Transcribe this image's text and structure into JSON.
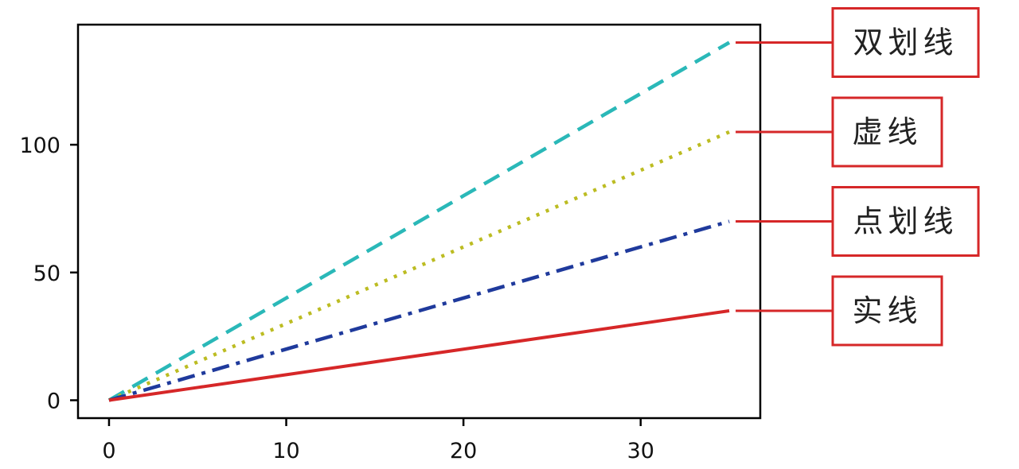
{
  "chart_data": {
    "type": "line",
    "title": "",
    "xlabel": "",
    "ylabel": "",
    "xlim": [
      -1.75,
      36.75
    ],
    "ylim": [
      -7,
      147
    ],
    "xticks": [
      0,
      10,
      20,
      30
    ],
    "yticks": [
      0,
      50,
      100
    ],
    "xtick_labels": [
      "0",
      "10",
      "20",
      "30"
    ],
    "ytick_labels": [
      "0",
      "50",
      "100"
    ],
    "grid": false,
    "legend": "callout labels at right",
    "x": [
      0,
      5,
      10,
      15,
      20,
      25,
      30,
      35
    ],
    "series": [
      {
        "name": "双划线",
        "style": "dashed",
        "color": "#2ab8b8",
        "values": [
          0,
          20,
          40,
          60,
          80,
          100,
          120,
          140
        ]
      },
      {
        "name": "虚线",
        "style": "dotted",
        "color": "#bcbc22",
        "values": [
          0,
          15,
          30,
          45,
          60,
          75,
          90,
          105
        ]
      },
      {
        "name": "点划线",
        "style": "dashdot",
        "color": "#1f3a9c",
        "values": [
          0,
          10,
          20,
          30,
          40,
          50,
          60,
          70
        ]
      },
      {
        "name": "实线",
        "style": "solid",
        "color": "#d62728",
        "values": [
          0,
          5,
          10,
          15,
          20,
          25,
          30,
          35
        ]
      }
    ],
    "callout_color": "#d62728"
  }
}
